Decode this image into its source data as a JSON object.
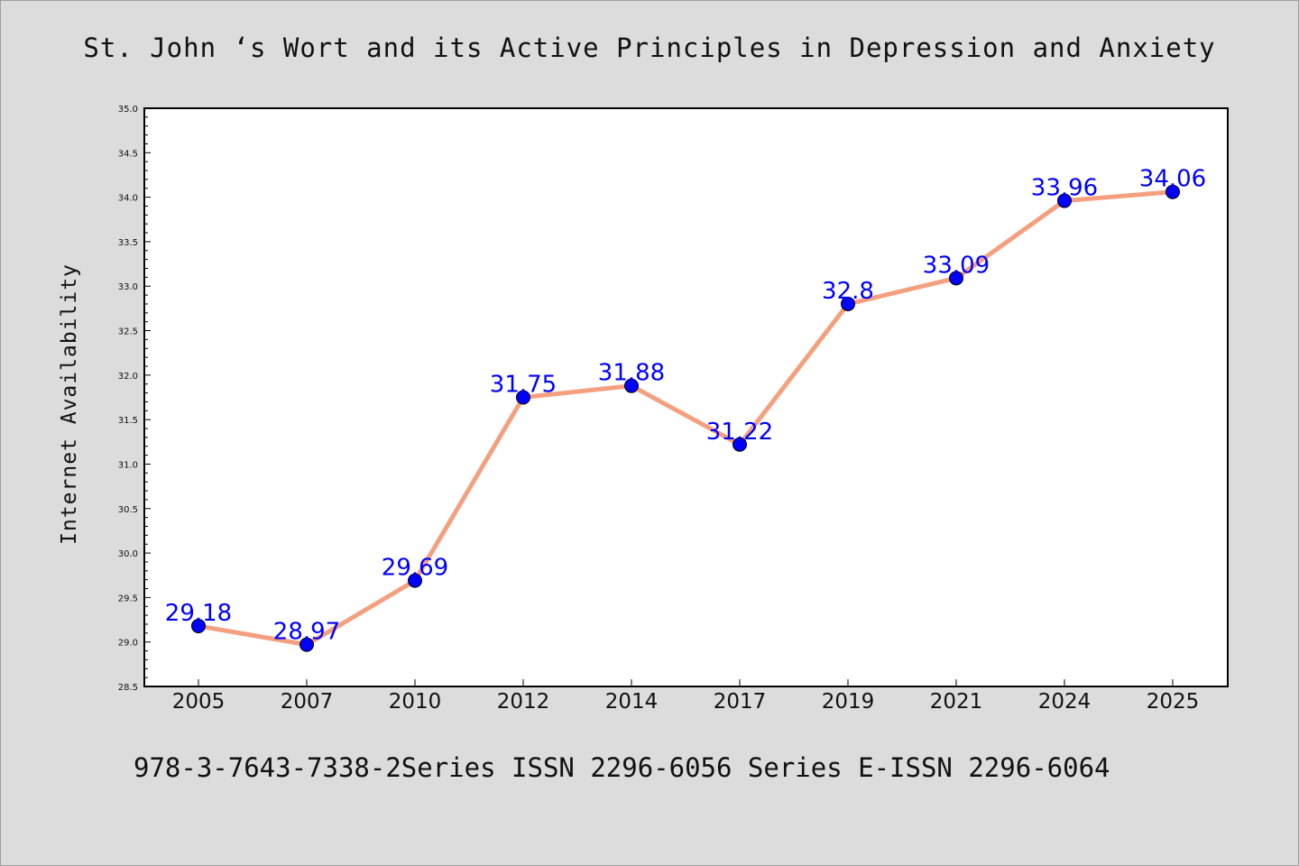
{
  "title": "St. John ‘s Wort and its Active Principles in Depression and Anxiety",
  "footer": "978-3-7643-7338-2Series ISSN 2296-6056 Series E-ISSN 2296-6064",
  "chart_data": {
    "type": "line",
    "title": "St. John ‘s Wort and its Active Principles in Depression and Anxiety",
    "xlabel": "",
    "ylabel": "Internet Availability",
    "categories": [
      "2005",
      "2007",
      "2010",
      "2012",
      "2014",
      "2017",
      "2019",
      "2021",
      "2024",
      "2025"
    ],
    "values": [
      29.18,
      28.97,
      29.69,
      31.75,
      31.88,
      31.22,
      32.8,
      33.09,
      33.96,
      34.06
    ],
    "data_labels": [
      "29.18",
      "28.97",
      "29.69",
      "31.75",
      "31.88",
      "31.22",
      "32.8",
      "33.09",
      "33.96",
      "34.06"
    ],
    "ylim": [
      28.5,
      35.0
    ],
    "yticks": [
      "28.5",
      "29.0",
      "29.5",
      "30.0",
      "30.5",
      "31.0",
      "31.5",
      "32.0",
      "32.5",
      "33.0",
      "33.5",
      "34.0",
      "34.5",
      "35.0"
    ],
    "grid": false,
    "line_color": "#f4a07f",
    "marker_color": "#0000ff",
    "label_color": "#0000ff"
  }
}
